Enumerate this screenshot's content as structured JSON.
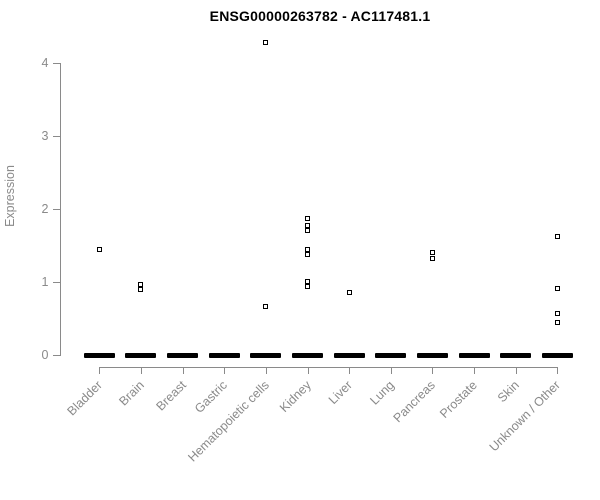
{
  "title": "ENSG00000263782 - AC117481.1",
  "chart_data": {
    "type": "scatter",
    "title": "ENSG00000263782 - AC117481.1",
    "xlabel": "",
    "ylabel": "Expression",
    "ylim": [
      0,
      4.4
    ],
    "yticks": [
      0,
      1,
      2,
      3,
      4
    ],
    "grid": "off",
    "legend": "none",
    "categories": [
      "Bladder",
      "Brain",
      "Breast",
      "Gastric",
      "Hematopoietic cells",
      "Kidney",
      "Liver",
      "Lung",
      "Pancreas",
      "Prostate",
      "Skin",
      "Unknown / Other"
    ],
    "zero_cluster_note": "every category shows a dense overlapping cluster of points at expression 0, drawn as a thick black dash",
    "zero_cluster_value": 0,
    "series": [
      {
        "name": "Bladder",
        "values": [
          1.45
        ]
      },
      {
        "name": "Brain",
        "values": [
          0.97,
          0.9
        ]
      },
      {
        "name": "Breast",
        "values": []
      },
      {
        "name": "Gastric",
        "values": []
      },
      {
        "name": "Hematopoietic cells",
        "values": [
          4.28,
          0.67
        ]
      },
      {
        "name": "Kidney",
        "values": [
          1.87,
          1.77,
          1.7,
          1.44,
          1.37,
          1.01,
          0.94
        ]
      },
      {
        "name": "Liver",
        "values": [
          0.86
        ]
      },
      {
        "name": "Lung",
        "values": []
      },
      {
        "name": "Pancreas",
        "values": [
          1.4,
          1.32
        ]
      },
      {
        "name": "Prostate",
        "values": []
      },
      {
        "name": "Skin",
        "values": []
      },
      {
        "name": "Unknown / Other",
        "values": [
          1.62,
          0.91,
          0.57,
          0.44
        ]
      }
    ],
    "colors": {
      "point": "#000000",
      "axis": "#8a8a8a",
      "tick_label": "#8a8a8a",
      "title": "#000000",
      "background": "#ffffff"
    }
  }
}
